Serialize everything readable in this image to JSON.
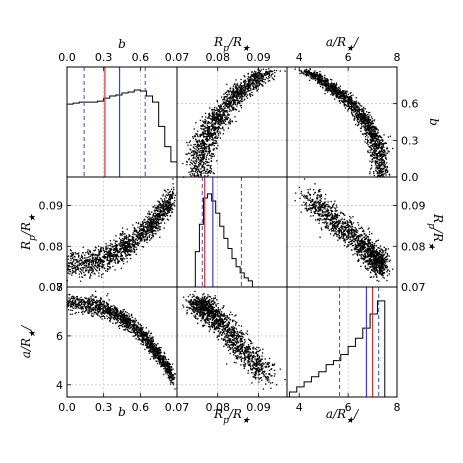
{
  "chart_data": {
    "type": "scatter",
    "grid": true,
    "params": [
      {
        "key": "b",
        "label": "b",
        "range": [
          0,
          0.9
        ],
        "ticks": [
          0.0,
          0.3,
          0.6
        ],
        "tick_labels": [
          "0.0",
          "0.3",
          "0.6"
        ]
      },
      {
        "key": "rp",
        "label": "Rp/R★",
        "range": [
          0.07,
          0.097
        ],
        "ticks": [
          0.07,
          0.08,
          0.09
        ],
        "tick_labels": [
          "0.07",
          "0.08",
          "0.09"
        ]
      },
      {
        "key": "a",
        "label": "a/R★",
        "range": [
          3.5,
          8.0
        ],
        "ticks": [
          4,
          6,
          8
        ],
        "tick_labels": [
          "4",
          "6",
          "8"
        ]
      }
    ],
    "axis_labels": {
      "b": "b",
      "rp": "R_p/R_★",
      "a": "a/R_★"
    },
    "histograms": {
      "b": {
        "bins": [
          0,
          0.05,
          0.1,
          0.15,
          0.2,
          0.25,
          0.3,
          0.35,
          0.4,
          0.45,
          0.5,
          0.55,
          0.6,
          0.65,
          0.7,
          0.75,
          0.8,
          0.85,
          0.9
        ],
        "counts": [
          0.72,
          0.73,
          0.74,
          0.74,
          0.74,
          0.75,
          0.78,
          0.8,
          0.81,
          0.83,
          0.84,
          0.86,
          0.85,
          0.8,
          0.74,
          0.5,
          0.3,
          0.15
        ],
        "median": 0.43,
        "reference": 0.31,
        "ci": [
          0.14,
          0.64
        ]
      },
      "rp": {
        "bins": [
          0.0745,
          0.0755,
          0.0765,
          0.0775,
          0.0785,
          0.0795,
          0.0805,
          0.0815,
          0.0825,
          0.0835,
          0.0845,
          0.0855,
          0.0865,
          0.0875,
          0.0885
        ],
        "counts": [
          0.35,
          0.62,
          0.88,
          0.92,
          0.85,
          0.73,
          0.6,
          0.48,
          0.38,
          0.28,
          0.2,
          0.14,
          0.09,
          0.06
        ],
        "median": 0.0788,
        "reference": 0.0768,
        "ci": [
          0.0762,
          0.0858
        ]
      },
      "a": {
        "bins": [
          3.6,
          3.9,
          4.2,
          4.5,
          4.8,
          5.1,
          5.4,
          5.7,
          6.0,
          6.3,
          6.6,
          6.9,
          7.2,
          7.5
        ],
        "counts": [
          0.05,
          0.1,
          0.15,
          0.2,
          0.25,
          0.32,
          0.36,
          0.42,
          0.5,
          0.58,
          0.68,
          0.82,
          0.95
        ],
        "median": 6.75,
        "reference": 7.0,
        "ci": [
          5.65,
          7.25
        ]
      }
    },
    "scatter_relations": {
      "b_vs_rp": "Rp/R★ rises with b (≈0.075 at b=0 to ≈0.09 at b=0.8)",
      "b_vs_a": "a/R★ falls with b (≈7.3 at b=0 to ≈4 at b=0.9)",
      "rp_vs_a": "a/R★ falls as Rp/R★ increases"
    },
    "colors": {
      "median": "#3a3adf",
      "reference": "#e03030",
      "ci": "#4444ee",
      "points": "#000000",
      "hist": "#000000"
    }
  }
}
